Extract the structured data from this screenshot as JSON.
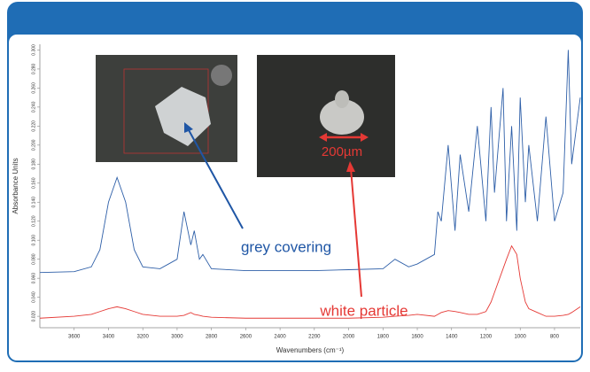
{
  "chart_data": {
    "type": "line",
    "x_label": "Wavenumbers (cm⁻¹)",
    "y_label": "Absorbance Units",
    "x": [
      3800,
      3600,
      3500,
      3450,
      3400,
      3350,
      3300,
      3250,
      3200,
      3100,
      3050,
      3000,
      2960,
      2920,
      2900,
      2870,
      2850,
      2800,
      2600,
      2400,
      2200,
      2000,
      1800,
      1730,
      1650,
      1600,
      1500,
      1480,
      1460,
      1420,
      1380,
      1350,
      1300,
      1250,
      1200,
      1170,
      1150,
      1100,
      1080,
      1050,
      1020,
      1000,
      970,
      950,
      900,
      850,
      800,
      750,
      720,
      700,
      650
    ],
    "series": [
      {
        "name": "grey covering",
        "color": "#2e5fa8",
        "values": [
          0.066,
          0.067,
          0.072,
          0.09,
          0.14,
          0.166,
          0.14,
          0.09,
          0.072,
          0.07,
          0.075,
          0.08,
          0.13,
          0.095,
          0.11,
          0.08,
          0.085,
          0.07,
          0.068,
          0.068,
          0.068,
          0.069,
          0.07,
          0.08,
          0.072,
          0.075,
          0.085,
          0.13,
          0.12,
          0.2,
          0.11,
          0.19,
          0.13,
          0.22,
          0.12,
          0.24,
          0.15,
          0.26,
          0.12,
          0.22,
          0.11,
          0.25,
          0.14,
          0.2,
          0.12,
          0.23,
          0.12,
          0.15,
          0.3,
          0.18,
          0.25
        ]
      },
      {
        "name": "white particle",
        "color": "#e53935",
        "values": [
          0.018,
          0.02,
          0.022,
          0.025,
          0.028,
          0.03,
          0.028,
          0.025,
          0.022,
          0.02,
          0.02,
          0.02,
          0.021,
          0.024,
          0.022,
          0.021,
          0.02,
          0.019,
          0.018,
          0.018,
          0.018,
          0.018,
          0.019,
          0.02,
          0.021,
          0.022,
          0.02,
          0.022,
          0.024,
          0.026,
          0.025,
          0.024,
          0.022,
          0.022,
          0.025,
          0.035,
          0.045,
          0.07,
          0.08,
          0.094,
          0.085,
          0.06,
          0.035,
          0.028,
          0.024,
          0.02,
          0.02,
          0.021,
          0.022,
          0.024,
          0.03
        ]
      }
    ],
    "annotations": [
      "200µm"
    ],
    "xlim": [
      3800,
      650
    ],
    "xticks": [
      3600,
      3400,
      3200,
      3000,
      2800,
      2600,
      2400,
      2200,
      2000,
      1800,
      1600,
      1400,
      1200,
      1000,
      800
    ],
    "ylim": [
      0.008,
      0.306
    ],
    "yticks": [
      {
        "value": 0.02,
        "label": "0.020"
      },
      {
        "value": 0.04,
        "label": "0.040"
      },
      {
        "value": 0.06,
        "label": "0.060"
      },
      {
        "value": 0.08,
        "label": "0.080"
      },
      {
        "value": 0.1,
        "label": "0.100"
      },
      {
        "value": 0.12,
        "label": "0.120"
      },
      {
        "value": 0.14,
        "label": "0.140"
      },
      {
        "value": 0.16,
        "label": "0.160"
      },
      {
        "value": 0.18,
        "label": "0.180"
      },
      {
        "value": 0.2,
        "label": "0.200"
      },
      {
        "value": 0.22,
        "label": "0.220"
      },
      {
        "value": 0.24,
        "label": "0.240"
      },
      {
        "value": 0.26,
        "label": "0.260"
      },
      {
        "value": 0.28,
        "label": "0.280"
      },
      {
        "value": 0.3,
        "label": "0.300"
      }
    ]
  }
}
